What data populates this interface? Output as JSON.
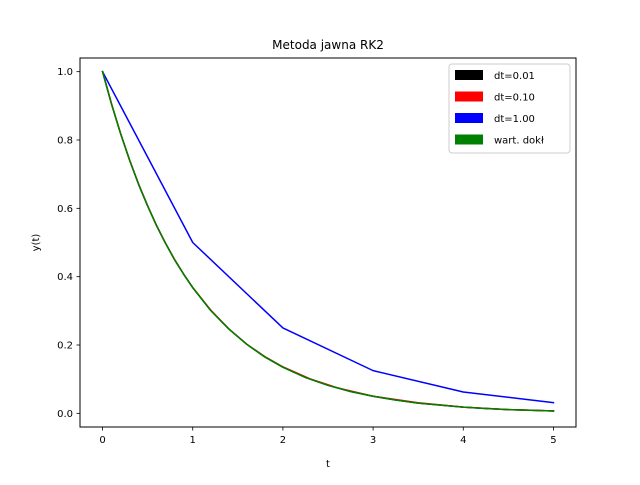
{
  "chart_data": {
    "type": "line",
    "title": "Metoda jawna RK2",
    "xlabel": "t",
    "ylabel": "y(t)",
    "xlim": [
      -0.25,
      5.25
    ],
    "ylim": [
      -0.04,
      1.04
    ],
    "xticks": [
      0,
      1,
      2,
      3,
      4,
      5
    ],
    "xtick_labels": [
      "0",
      "1",
      "2",
      "3",
      "4",
      "5"
    ],
    "yticks": [
      0.0,
      0.2,
      0.4,
      0.6,
      0.8,
      1.0
    ],
    "ytick_labels": [
      "0.0",
      "0.2",
      "0.4",
      "0.6",
      "0.8",
      "1.0"
    ],
    "grid": false,
    "legend_position": "top-right",
    "series": [
      {
        "name": "dt=0.01",
        "color": "#000000",
        "x": [
          0,
          0.1,
          0.2,
          0.3,
          0.4,
          0.5,
          0.6,
          0.7,
          0.8,
          0.9,
          1.0,
          1.2,
          1.4,
          1.6,
          1.8,
          2.0,
          2.25,
          2.5,
          2.75,
          3.0,
          3.25,
          3.5,
          3.75,
          4.0,
          4.25,
          4.5,
          4.75,
          5.0
        ],
        "y": [
          1.0,
          0.905,
          0.819,
          0.741,
          0.67,
          0.607,
          0.549,
          0.497,
          0.449,
          0.407,
          0.368,
          0.301,
          0.247,
          0.202,
          0.165,
          0.135,
          0.105,
          0.082,
          0.064,
          0.05,
          0.039,
          0.03,
          0.024,
          0.018,
          0.014,
          0.011,
          0.009,
          0.007
        ]
      },
      {
        "name": "dt=0.10",
        "color": "#ff0000",
        "x": [
          0,
          0.1,
          0.2,
          0.3,
          0.4,
          0.5,
          0.6,
          0.7,
          0.8,
          0.9,
          1.0,
          1.2,
          1.4,
          1.6,
          1.8,
          2.0,
          2.3,
          2.6,
          3.0,
          3.5,
          4.0,
          4.5,
          5.0
        ],
        "y": [
          1.0,
          0.905,
          0.819,
          0.741,
          0.671,
          0.607,
          0.549,
          0.497,
          0.45,
          0.407,
          0.368,
          0.302,
          0.247,
          0.202,
          0.166,
          0.136,
          0.101,
          0.075,
          0.05,
          0.031,
          0.018,
          0.011,
          0.007
        ]
      },
      {
        "name": "dt=1.00",
        "color": "#0000ff",
        "x": [
          0,
          1,
          2,
          3,
          4,
          5
        ],
        "y": [
          1.0,
          0.5,
          0.25,
          0.125,
          0.0625,
          0.03125
        ]
      },
      {
        "name": "wart. dokł",
        "color": "#008000",
        "x": [
          0,
          0.1,
          0.2,
          0.3,
          0.4,
          0.5,
          0.6,
          0.7,
          0.8,
          0.9,
          1.0,
          1.2,
          1.4,
          1.6,
          1.8,
          2.0,
          2.25,
          2.5,
          2.75,
          3.0,
          3.25,
          3.5,
          3.75,
          4.0,
          4.25,
          4.5,
          4.75,
          5.0
        ],
        "y": [
          1.0,
          0.905,
          0.819,
          0.741,
          0.67,
          0.607,
          0.549,
          0.497,
          0.449,
          0.407,
          0.368,
          0.301,
          0.247,
          0.202,
          0.165,
          0.135,
          0.105,
          0.082,
          0.064,
          0.05,
          0.039,
          0.03,
          0.024,
          0.018,
          0.014,
          0.011,
          0.009,
          0.007
        ]
      }
    ]
  }
}
